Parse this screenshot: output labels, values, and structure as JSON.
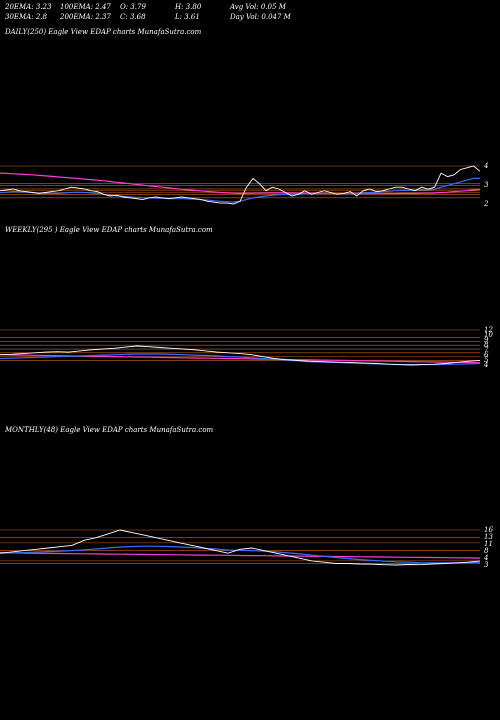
{
  "stats": {
    "ema20": "20EMA: 3.23",
    "ema100": "100EMA: 2.47",
    "open": "O: 3.79",
    "high": "H: 3.80",
    "avg_vol": "Avg Vol: 0.05 M",
    "ema30": "30EMA: 2.8",
    "ema200": "200EMA: 2.37",
    "close": "C: 3.68",
    "low": "L: 3.61",
    "day_vol": "Day Vol: 0.047 M"
  },
  "colors": {
    "background": "#000000",
    "price": "#ffffff",
    "ema_short": "#3a6cff",
    "ema_long": "#ff3bd6",
    "support_lines": "#c86414",
    "tick_text": "#ffffff"
  },
  "chart_data": [
    {
      "type": "line",
      "title": "DAILY(250) Eagle   View  EDAP charts MunafaSutra.com",
      "y_ticks": [
        "4",
        "3",
        "2"
      ],
      "series": [
        {
          "role": "price",
          "values": [
            2.6,
            2.65,
            2.7,
            2.6,
            2.55,
            2.5,
            2.45,
            2.5,
            2.55,
            2.6,
            2.7,
            2.8,
            2.75,
            2.7,
            2.6,
            2.55,
            2.4,
            2.3,
            2.35,
            2.25,
            2.2,
            2.15,
            2.1,
            2.2,
            2.25,
            2.2,
            2.15,
            2.2,
            2.25,
            2.2,
            2.15,
            2.1,
            2.0,
            1.95,
            1.9,
            1.9,
            1.85,
            2.0,
            2.8,
            3.3,
            3.0,
            2.6,
            2.8,
            2.7,
            2.5,
            2.3,
            2.4,
            2.6,
            2.4,
            2.5,
            2.6,
            2.5,
            2.4,
            2.45,
            2.55,
            2.3,
            2.6,
            2.7,
            2.55,
            2.6,
            2.7,
            2.8,
            2.8,
            2.7,
            2.6,
            2.8,
            2.7,
            2.8,
            3.6,
            3.4,
            3.5,
            3.8,
            3.9,
            4.0,
            3.7
          ]
        },
        {
          "role": "ema_short",
          "values": [
            2.5,
            2.52,
            2.55,
            2.55,
            2.52,
            2.5,
            2.47,
            2.45,
            2.45,
            2.45,
            2.48,
            2.5,
            2.52,
            2.5,
            2.48,
            2.45,
            2.4,
            2.35,
            2.3,
            2.28,
            2.25,
            2.22,
            2.2,
            2.2,
            2.18,
            2.17,
            2.15,
            2.15,
            2.15,
            2.14,
            2.12,
            2.1,
            2.07,
            2.03,
            2.0,
            1.98,
            1.96,
            2.0,
            2.1,
            2.2,
            2.25,
            2.3,
            2.35,
            2.38,
            2.4,
            2.4,
            2.4,
            2.42,
            2.42,
            2.43,
            2.45,
            2.45,
            2.43,
            2.43,
            2.45,
            2.45,
            2.48,
            2.5,
            2.52,
            2.55,
            2.58,
            2.6,
            2.62,
            2.62,
            2.63,
            2.65,
            2.65,
            2.68,
            2.8,
            2.9,
            3.0,
            3.1,
            3.2,
            3.3,
            3.3
          ]
        },
        {
          "role": "ema_long",
          "values": [
            3.6,
            3.58,
            3.56,
            3.54,
            3.52,
            3.5,
            3.47,
            3.44,
            3.41,
            3.38,
            3.35,
            3.32,
            3.29,
            3.26,
            3.23,
            3.2,
            3.16,
            3.12,
            3.08,
            3.04,
            3.0,
            2.96,
            2.92,
            2.88,
            2.84,
            2.8,
            2.76,
            2.72,
            2.68,
            2.65,
            2.62,
            2.59,
            2.56,
            2.53,
            2.5,
            2.48,
            2.46,
            2.45,
            2.45,
            2.46,
            2.47,
            2.47,
            2.48,
            2.48,
            2.48,
            2.47,
            2.46,
            2.46,
            2.46,
            2.45,
            2.45,
            2.45,
            2.44,
            2.44,
            2.44,
            2.43,
            2.43,
            2.43,
            2.43,
            2.43,
            2.44,
            2.44,
            2.45,
            2.45,
            2.45,
            2.46,
            2.46,
            2.47,
            2.5,
            2.52,
            2.55,
            2.58,
            2.61,
            2.65,
            2.68
          ]
        }
      ],
      "hlines": [
        4.0,
        3.0,
        2.9,
        2.7,
        2.6,
        2.5,
        2.4,
        2.2
      ]
    },
    {
      "type": "line",
      "title": "WEEKLY(295                    ) Eagle   View  EDAP charts MunafaSutra.com",
      "y_ticks": [
        "12",
        "10",
        "9",
        "8",
        "7",
        "6",
        "5",
        "4"
      ],
      "series": [
        {
          "role": "price",
          "values": [
            5.5,
            5.6,
            5.8,
            6.0,
            6.2,
            6.3,
            6.2,
            6.5,
            6.8,
            7.0,
            7.2,
            7.5,
            7.8,
            7.6,
            7.4,
            7.2,
            7.0,
            6.8,
            6.5,
            6.2,
            6.0,
            5.8,
            5.5,
            5.0,
            4.5,
            4.2,
            4.0,
            3.8,
            3.7,
            3.6,
            3.5,
            3.4,
            3.3,
            3.2,
            3.0,
            2.9,
            2.8,
            2.9,
            3.0,
            3.2,
            3.5,
            3.8,
            4.0
          ]
        },
        {
          "role": "ema_short",
          "values": [
            4.5,
            4.6,
            4.7,
            4.8,
            4.9,
            5.0,
            5.1,
            5.2,
            5.3,
            5.4,
            5.5,
            5.6,
            5.7,
            5.7,
            5.7,
            5.6,
            5.5,
            5.4,
            5.3,
            5.2,
            5.0,
            4.9,
            4.7,
            4.5,
            4.3,
            4.1,
            3.9,
            3.7,
            3.6,
            3.5,
            3.4,
            3.3,
            3.2,
            3.1,
            3.0,
            2.9,
            2.9,
            2.9,
            2.9,
            2.95,
            3.0,
            3.1,
            3.2
          ]
        },
        {
          "role": "ema_long",
          "values": [
            5.5,
            5.45,
            5.4,
            5.35,
            5.3,
            5.25,
            5.2,
            5.15,
            5.1,
            5.05,
            5.0,
            4.95,
            4.9,
            4.85,
            4.8,
            4.75,
            4.7,
            4.65,
            4.6,
            4.55,
            4.5,
            4.45,
            4.4,
            4.35,
            4.3,
            4.25,
            4.2,
            4.15,
            4.1,
            4.05,
            4.0,
            3.95,
            3.9,
            3.85,
            3.8,
            3.75,
            3.7,
            3.65,
            3.6,
            3.55,
            3.5,
            3.45,
            3.4
          ]
        }
      ],
      "hlines": [
        12,
        10,
        9,
        8,
        7,
        6,
        5,
        4
      ]
    },
    {
      "type": "line",
      "title": "MONTHLY(48) Eagle   View  EDAP charts MunafaSutra.com",
      "y_ticks": [
        "16",
        "13",
        "11",
        "8",
        "4",
        "3"
      ],
      "series": [
        {
          "role": "price",
          "values": [
            7.0,
            7.5,
            8.0,
            8.5,
            9.0,
            9.5,
            10.0,
            12.0,
            13.0,
            14.5,
            16.0,
            15.0,
            14.0,
            13.0,
            12.0,
            11.0,
            10.0,
            9.0,
            8.0,
            7.0,
            8.5,
            9.0,
            8.0,
            7.0,
            6.0,
            5.0,
            4.0,
            3.5,
            3.0,
            3.0,
            2.8,
            2.7,
            2.5,
            2.4,
            2.6,
            2.5,
            2.8,
            3.0,
            3.2,
            3.5,
            4.0
          ]
        },
        {
          "role": "ema_short",
          "values": [
            7.0,
            7.1,
            7.2,
            7.4,
            7.6,
            7.8,
            8.0,
            8.3,
            8.6,
            9.0,
            9.4,
            9.6,
            9.7,
            9.7,
            9.6,
            9.4,
            9.2,
            8.9,
            8.6,
            8.2,
            8.1,
            8.0,
            7.8,
            7.5,
            7.1,
            6.7,
            6.2,
            5.8,
            5.3,
            4.9,
            4.5,
            4.2,
            3.9,
            3.6,
            3.5,
            3.3,
            3.2,
            3.2,
            3.2,
            3.3,
            3.4
          ]
        },
        {
          "role": "ema_long",
          "values": [
            7.2,
            7.1,
            7.0,
            6.95,
            6.9,
            6.85,
            6.8,
            6.75,
            6.7,
            6.65,
            6.6,
            6.55,
            6.5,
            6.45,
            6.4,
            6.35,
            6.3,
            6.25,
            6.2,
            6.15,
            6.1,
            6.05,
            6.0,
            5.95,
            5.9,
            5.85,
            5.8,
            5.75,
            5.7,
            5.65,
            5.6,
            5.55,
            5.5,
            5.45,
            5.4,
            5.35,
            5.3,
            5.25,
            5.2,
            5.15,
            5.1
          ]
        }
      ],
      "hlines": [
        16,
        13,
        11,
        8,
        4,
        3
      ]
    }
  ]
}
